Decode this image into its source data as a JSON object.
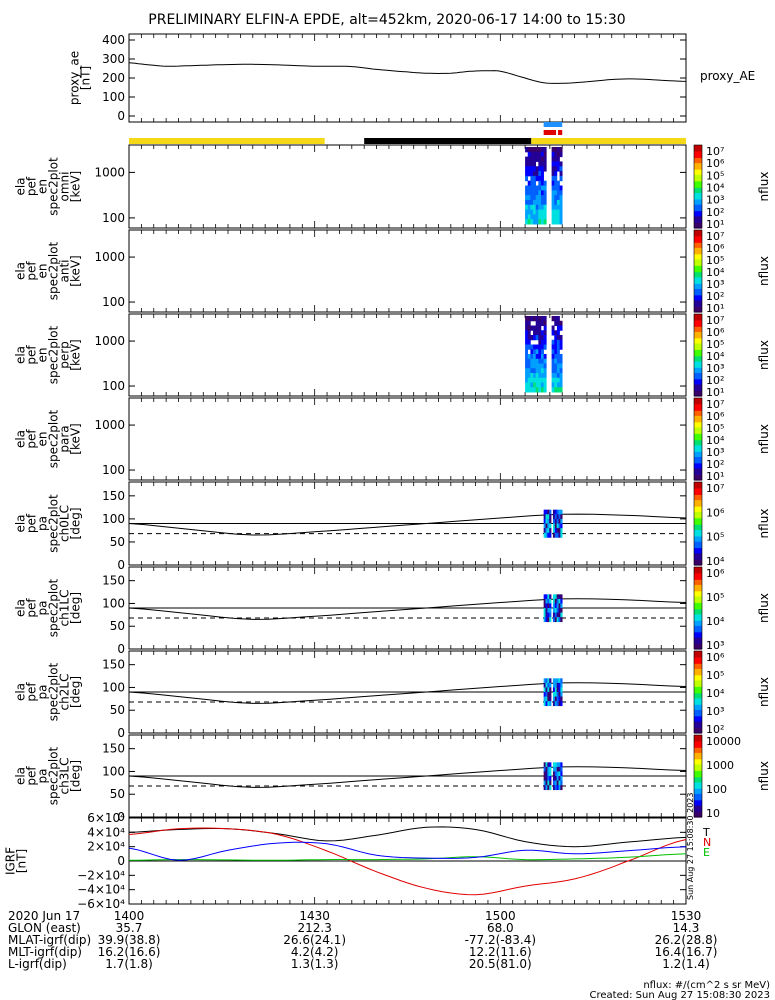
{
  "title": "PRELIMINARY ELFIN-A EPDE, alt=452km, 2020-06-17 14:00 to 15:30",
  "x_tick_labels": [
    "1400",
    "1430",
    "1500",
    "1530"
  ],
  "panels": {
    "ae": {
      "ylabel": [
        "proxy_ae",
        "[nT]"
      ],
      "ticks": [
        "400",
        "300",
        "200",
        "100",
        "0"
      ],
      "legend": "proxy_AE"
    },
    "omni": {
      "ylabel": [
        "ela",
        "pef",
        "en",
        "spec2plot",
        "omni",
        "[keV]"
      ],
      "ticks": [
        "1000",
        "100"
      ],
      "cb_label": "nflux",
      "cb_ticks": [
        "10⁷",
        "10⁶",
        "10⁵",
        "10⁴",
        "10³",
        "10²",
        "10¹"
      ]
    },
    "anti": {
      "ylabel": [
        "ela",
        "pef",
        "en",
        "spec2plot",
        "anti",
        "[keV]"
      ],
      "ticks": [
        "1000",
        "100"
      ],
      "cb_label": "nflux",
      "cb_ticks": [
        "10⁷",
        "10⁶",
        "10⁵",
        "10⁴",
        "10³",
        "10²",
        "10¹"
      ]
    },
    "perp": {
      "ylabel": [
        "ela",
        "pef",
        "en",
        "spec2plot",
        "perp",
        "[keV]"
      ],
      "ticks": [
        "1000",
        "100"
      ],
      "cb_label": "nflux",
      "cb_ticks": [
        "10⁷",
        "10⁶",
        "10⁵",
        "10⁴",
        "10³",
        "10²",
        "10¹"
      ]
    },
    "para": {
      "ylabel": [
        "ela",
        "pef",
        "en",
        "spec2plot",
        "para",
        "[keV]"
      ],
      "ticks": [
        "1000",
        "100"
      ],
      "cb_label": "nflux",
      "cb_ticks": [
        "10⁷",
        "10⁶",
        "10⁵",
        "10⁴",
        "10³",
        "10²",
        "10¹"
      ]
    },
    "ch0": {
      "ylabel": [
        "ela",
        "pef",
        "pa",
        "spec2plot",
        "ch0LC",
        "[deg]"
      ],
      "ticks": [
        "150",
        "100",
        "50",
        "0"
      ],
      "cb_label": "nflux",
      "cb_ticks": [
        "10⁷",
        "10⁶",
        "10⁵",
        "10⁴"
      ]
    },
    "ch1": {
      "ylabel": [
        "ela",
        "pef",
        "pa",
        "spec2plot",
        "ch1LC",
        "[deg]"
      ],
      "ticks": [
        "150",
        "100",
        "50",
        "0"
      ],
      "cb_label": "nflux",
      "cb_ticks": [
        "10⁶",
        "10⁵",
        "10⁴",
        "10³"
      ]
    },
    "ch2": {
      "ylabel": [
        "ela",
        "pef",
        "pa",
        "spec2plot",
        "ch2LC",
        "[deg]"
      ],
      "ticks": [
        "150",
        "100",
        "50",
        "0"
      ],
      "cb_label": "nflux",
      "cb_ticks": [
        "10⁶",
        "10⁵",
        "10⁴",
        "10³",
        "10²"
      ]
    },
    "ch3": {
      "ylabel": [
        "ela",
        "pef",
        "pa",
        "spec2plot",
        "ch3LC",
        "[deg]"
      ],
      "ticks": [
        "150",
        "100",
        "50",
        "0"
      ],
      "cb_label": "nflux",
      "cb_ticks": [
        "10000",
        "1000",
        "100",
        "10"
      ]
    },
    "igrf": {
      "ylabel": [
        "IGRF",
        "[nT]"
      ],
      "ticks": [
        "6×10⁴",
        "4×10⁴",
        "2×10⁴",
        "0",
        "−2×10⁴",
        "−4×10⁴",
        "−6×10⁴"
      ],
      "legend": [
        "T",
        "N",
        "E"
      ]
    }
  },
  "orbit_rows": [
    [
      "2020 Jun 17",
      "1400",
      "1430",
      "1500",
      "1530"
    ],
    [
      "GLON (east)",
      "35.7",
      "212.3",
      "68.0",
      "14.3"
    ],
    [
      "MLAT-igrf(dip)",
      "39.9(38.8)",
      "26.6(24.1)",
      "-77.2(-83.4)",
      "26.2(28.8)"
    ],
    [
      "MLT-igrf(dip)",
      "16.2(16.6)",
      "4.2(4.2)",
      "12.2(11.6)",
      "16.4(16.7)"
    ],
    [
      "L-igrf(dip)",
      "1.7(1.8)",
      "1.3(1.3)",
      "20.5(81.0)",
      "1.2(1.4)"
    ]
  ],
  "footer": {
    "units": "nflux: #/(cm^2 s sr MeV)",
    "created": "Created: Sun Aug 27 15:08:30 2023",
    "side_stamp": "Sun Aug 27 15:08:30 2023"
  },
  "colors": {
    "T": "#000000",
    "N": "#e00000",
    "E": "#00c000",
    "blue": "#0000ff",
    "bar_yellow": "#f5d817",
    "bar_black": "#000000",
    "bar_blue": "#1e90ff",
    "bar_red": "#e00000"
  },
  "chart_data": [
    {
      "type": "line",
      "title": "PRELIMINARY ELFIN-A EPDE, alt=452km, 2020-06-17 14:00 to 15:30",
      "ylabel": "proxy_ae [nT]",
      "ylim": [
        0,
        400
      ],
      "xlim": [
        "14:00",
        "15:30"
      ],
      "series": [
        {
          "name": "proxy_AE",
          "x": [
            "14:00",
            "14:03",
            "14:06",
            "14:10",
            "14:15",
            "14:20",
            "14:25",
            "14:30",
            "14:33",
            "14:36",
            "14:40",
            "14:45",
            "14:48",
            "14:52",
            "14:55",
            "14:58",
            "15:00",
            "15:04",
            "15:07",
            "15:10",
            "15:14",
            "15:18",
            "15:22",
            "15:26",
            "15:30"
          ],
          "values": [
            280,
            270,
            262,
            265,
            270,
            272,
            268,
            262,
            262,
            260,
            245,
            232,
            225,
            225,
            235,
            238,
            235,
            200,
            175,
            172,
            180,
            192,
            195,
            188,
            182
          ]
        }
      ]
    },
    {
      "type": "heatmap",
      "name": "omni [keV]",
      "ylim": [
        60,
        4000
      ],
      "yscale": "log",
      "active_window": [
        "15:04",
        "15:10"
      ]
    },
    {
      "type": "heatmap",
      "name": "anti [keV]",
      "ylim": [
        60,
        4000
      ],
      "yscale": "log"
    },
    {
      "type": "heatmap",
      "name": "perp [keV]",
      "ylim": [
        60,
        4000
      ],
      "yscale": "log",
      "active_window": [
        "15:04",
        "15:10"
      ]
    },
    {
      "type": "heatmap",
      "name": "para [keV]",
      "ylim": [
        60,
        4000
      ],
      "yscale": "log"
    },
    {
      "type": "line",
      "name": "pitch angle lines [deg]",
      "ylim": [
        0,
        180
      ],
      "xlim": [
        "14:00",
        "15:30"
      ],
      "series": [
        {
          "name": "",
          "style": "solid",
          "x": [
            "14:00",
            "14:10",
            "14:20",
            "14:30",
            "14:40",
            "14:50",
            "15:00",
            "15:10",
            "15:20",
            "15:30"
          ],
          "values": [
            90,
            90,
            90,
            90,
            90,
            90,
            90,
            90,
            90,
            90
          ]
        },
        {
          "name": "",
          "style": "solid",
          "x": [
            "14:00",
            "14:10",
            "14:20",
            "14:30",
            "14:40",
            "14:50",
            "15:00",
            "15:10",
            "15:20",
            "15:30"
          ],
          "values": [
            90,
            77,
            65,
            72,
            82,
            92,
            102,
            110,
            108,
            102
          ]
        },
        {
          "name": "",
          "style": "dashed",
          "x": [
            "14:00",
            "14:10",
            "14:20",
            "14:30",
            "14:40",
            "14:50",
            "15:00",
            "15:10",
            "15:20",
            "15:30"
          ],
          "values": [
            68,
            68,
            68,
            68,
            68,
            68,
            68,
            68,
            68,
            68
          ]
        }
      ]
    },
    {
      "type": "line",
      "name": "IGRF [nT]",
      "ylim": [
        -60000,
        60000
      ],
      "xlim": [
        "14:00",
        "15:30"
      ],
      "series": [
        {
          "name": "T",
          "x": [
            "14:00",
            "14:08",
            "14:16",
            "14:24",
            "14:32",
            "14:40",
            "14:48",
            "14:56",
            "15:04",
            "15:12",
            "15:20",
            "15:30"
          ],
          "values": [
            40000,
            44000,
            45000,
            38000,
            28000,
            36000,
            47000,
            44000,
            27000,
            20000,
            26000,
            33000
          ]
        },
        {
          "name": "N",
          "x": [
            "14:00",
            "14:08",
            "14:16",
            "14:24",
            "14:32",
            "14:40",
            "14:48",
            "14:56",
            "15:04",
            "15:12",
            "15:20",
            "15:30"
          ],
          "values": [
            37000,
            45000,
            45000,
            37000,
            14000,
            -15000,
            -38000,
            -47000,
            -35000,
            -25000,
            -2000,
            30000
          ]
        },
        {
          "name": "E",
          "x": [
            "14:00",
            "14:08",
            "14:16",
            "14:24",
            "14:32",
            "14:40",
            "14:48",
            "14:56",
            "15:04",
            "15:12",
            "15:20",
            "15:30"
          ],
          "values": [
            1000,
            2000,
            1500,
            1000,
            2000,
            2000,
            3000,
            6000,
            2000,
            3000,
            5000,
            10000
          ]
        },
        {
          "name": "",
          "x": [
            "14:00",
            "14:08",
            "14:16",
            "14:24",
            "14:32",
            "14:40",
            "14:48",
            "14:56",
            "15:04",
            "15:12",
            "15:20",
            "15:30"
          ],
          "values": [
            18000,
            1000,
            15000,
            25000,
            24000,
            8000,
            4000,
            5000,
            15000,
            10000,
            14000,
            20000
          ]
        }
      ]
    }
  ]
}
